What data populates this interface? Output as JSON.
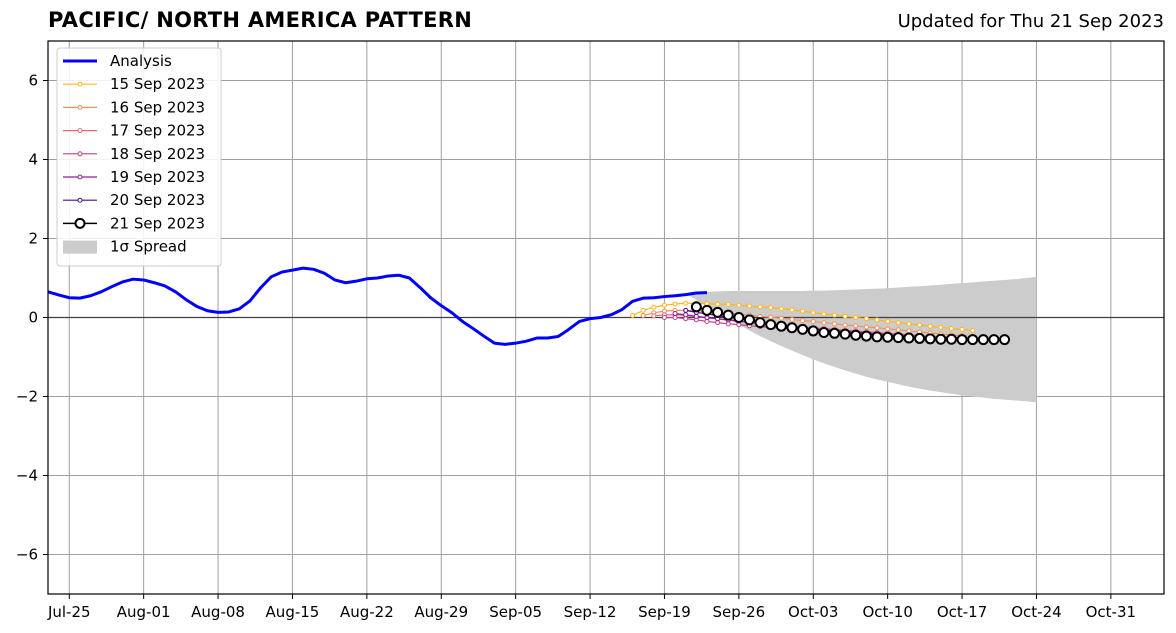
{
  "header": {
    "title": "PACIFIC/ NORTH AMERICA PATTERN",
    "updated": "Updated for Thu 21 Sep 2023"
  },
  "chart_data": {
    "type": "line",
    "title": "PACIFIC/ NORTH AMERICA PATTERN",
    "subtitle": "Updated for Thu 21 Sep 2023",
    "xlabel": "",
    "ylabel": "",
    "xlim": [
      "2023-07-23",
      "2023-11-05"
    ],
    "ylim": [
      -7,
      7
    ],
    "grid": true,
    "legend_position": "upper-left",
    "x_ticks": [
      "Jul-25",
      "Aug-01",
      "Aug-08",
      "Aug-15",
      "Aug-22",
      "Aug-29",
      "Sep-05",
      "Sep-12",
      "Sep-19",
      "Sep-26",
      "Oct-03",
      "Oct-10",
      "Oct-17",
      "Oct-24",
      "Oct-31"
    ],
    "y_ticks": [
      -6,
      -4,
      -2,
      0,
      2,
      4,
      6
    ],
    "y_tick_labels": [
      "−6",
      "−4",
      "−2",
      "0",
      "2",
      "4",
      "6"
    ],
    "analysis": {
      "name": "Analysis",
      "color": "#0000ff",
      "start_date": "2023-07-23",
      "values": [
        0.65,
        0.57,
        0.5,
        0.49,
        0.55,
        0.65,
        0.78,
        0.9,
        0.97,
        0.95,
        0.88,
        0.8,
        0.65,
        0.45,
        0.28,
        0.17,
        0.13,
        0.14,
        0.22,
        0.42,
        0.75,
        1.03,
        1.15,
        1.2,
        1.25,
        1.22,
        1.12,
        0.95,
        0.88,
        0.92,
        0.98,
        1.0,
        1.05,
        1.07,
        1.0,
        0.76,
        0.5,
        0.3,
        0.12,
        -0.1,
        -0.28,
        -0.47,
        -0.65,
        -0.68,
        -0.65,
        -0.6,
        -0.52,
        -0.52,
        -0.48,
        -0.3,
        -0.1,
        -0.03,
        0.0,
        0.07,
        0.2,
        0.41,
        0.49,
        0.5,
        0.53,
        0.55,
        0.58,
        0.62,
        0.63
      ]
    },
    "forecasts": [
      {
        "name": "15 Sep 2023",
        "color": "#ffb51a",
        "start_date": "2023-09-16",
        "values": [
          0.05,
          0.18,
          0.26,
          0.31,
          0.34,
          0.36,
          0.36,
          0.35,
          0.34,
          0.33,
          0.31,
          0.29,
          0.27,
          0.25,
          0.22,
          0.19,
          0.16,
          0.12,
          0.09,
          0.06,
          0.03,
          0.0,
          -0.03,
          -0.06,
          -0.1,
          -0.13,
          -0.16,
          -0.19,
          -0.22,
          -0.25,
          -0.28,
          -0.3,
          -0.33
        ]
      },
      {
        "name": "16 Sep 2023",
        "color": "#f4915a",
        "start_date": "2023-09-17",
        "values": [
          0.05,
          0.12,
          0.16,
          0.18,
          0.18,
          0.17,
          0.15,
          0.13,
          0.11,
          0.08,
          0.06,
          0.03,
          0.01,
          -0.02,
          -0.05,
          -0.08,
          -0.1,
          -0.13,
          -0.16,
          -0.19,
          -0.21,
          -0.24,
          -0.26,
          -0.29,
          -0.31,
          -0.34,
          -0.37,
          -0.39,
          -0.42,
          -0.44,
          -0.46,
          -0.48
        ]
      },
      {
        "name": "17 Sep 2023",
        "color": "#e2677a",
        "start_date": "2023-09-18",
        "values": [
          0.04,
          0.07,
          0.07,
          0.05,
          0.02,
          -0.01,
          -0.04,
          -0.07,
          -0.1,
          -0.12,
          -0.15,
          -0.17,
          -0.19,
          -0.21,
          -0.24,
          -0.26,
          -0.28,
          -0.3,
          -0.32,
          -0.34,
          -0.36,
          -0.38,
          -0.4,
          -0.42,
          -0.44,
          -0.46,
          -0.48,
          -0.49,
          -0.5,
          -0.51,
          -0.52
        ]
      },
      {
        "name": "18 Sep 2023",
        "color": "#c0408d",
        "start_date": "2023-09-19",
        "values": [
          0.0,
          0.0,
          -0.03,
          -0.06,
          -0.1,
          -0.13,
          -0.16,
          -0.18,
          -0.21,
          -0.23,
          -0.25,
          -0.27,
          -0.29,
          -0.31,
          -0.33,
          -0.35,
          -0.37,
          -0.39,
          -0.4,
          -0.42,
          -0.43,
          -0.45,
          -0.46,
          -0.48,
          -0.49,
          -0.5,
          -0.51,
          -0.52,
          -0.53,
          -0.54
        ]
      },
      {
        "name": "19 Sep 2023",
        "color": "#8a1da0",
        "start_date": "2023-09-20",
        "values": [
          0.1,
          0.07,
          0.03,
          0.0,
          -0.03,
          -0.06,
          -0.09,
          -0.12,
          -0.15,
          -0.18,
          -0.21,
          -0.24,
          -0.26,
          -0.29,
          -0.31,
          -0.33,
          -0.35,
          -0.37,
          -0.39,
          -0.41,
          -0.43,
          -0.45,
          -0.46,
          -0.48,
          -0.49,
          -0.5,
          -0.51,
          -0.52,
          -0.53
        ]
      },
      {
        "name": "20 Sep 2023",
        "color": "#4b0c8a",
        "start_date": "2023-09-21",
        "values": [
          0.18,
          0.13,
          0.09,
          0.05,
          0.01,
          -0.03,
          -0.07,
          -0.11,
          -0.15,
          -0.19,
          -0.23,
          -0.26,
          -0.29,
          -0.32,
          -0.35,
          -0.38,
          -0.4,
          -0.42,
          -0.44,
          -0.46,
          -0.48,
          -0.5,
          -0.51,
          -0.52,
          -0.53,
          -0.54,
          -0.55,
          -0.56
        ]
      },
      {
        "name": "21 Sep 2023",
        "color": "#000000",
        "start_date": "2023-09-22",
        "values": [
          0.27,
          0.18,
          0.13,
          0.06,
          0.0,
          -0.06,
          -0.13,
          -0.18,
          -0.22,
          -0.26,
          -0.3,
          -0.34,
          -0.38,
          -0.4,
          -0.42,
          -0.45,
          -0.47,
          -0.49,
          -0.5,
          -0.51,
          -0.52,
          -0.53,
          -0.54,
          -0.55,
          -0.55,
          -0.56,
          -0.56,
          -0.56,
          -0.56,
          -0.56
        ]
      }
    ],
    "spread": {
      "name": "1σ Spread",
      "color": "#cccccc",
      "start_date": "2023-09-21",
      "upper": [
        0.6,
        0.63,
        0.65,
        0.66,
        0.67,
        0.67,
        0.67,
        0.67,
        0.67,
        0.67,
        0.67,
        0.67,
        0.68,
        0.68,
        0.69,
        0.7,
        0.71,
        0.72,
        0.73,
        0.74,
        0.76,
        0.78,
        0.79,
        0.81,
        0.83,
        0.85,
        0.87,
        0.89,
        0.91,
        0.93,
        0.95,
        0.97,
        1.0,
        1.03
      ],
      "lower": [
        0.6,
        0.45,
        0.27,
        0.12,
        -0.03,
        -0.18,
        -0.33,
        -0.47,
        -0.6,
        -0.72,
        -0.84,
        -0.95,
        -1.06,
        -1.16,
        -1.25,
        -1.34,
        -1.42,
        -1.5,
        -1.57,
        -1.63,
        -1.69,
        -1.75,
        -1.8,
        -1.85,
        -1.89,
        -1.93,
        -1.97,
        -2.0,
        -2.03,
        -2.06,
        -2.08,
        -2.1,
        -2.12,
        -2.15
      ]
    }
  }
}
